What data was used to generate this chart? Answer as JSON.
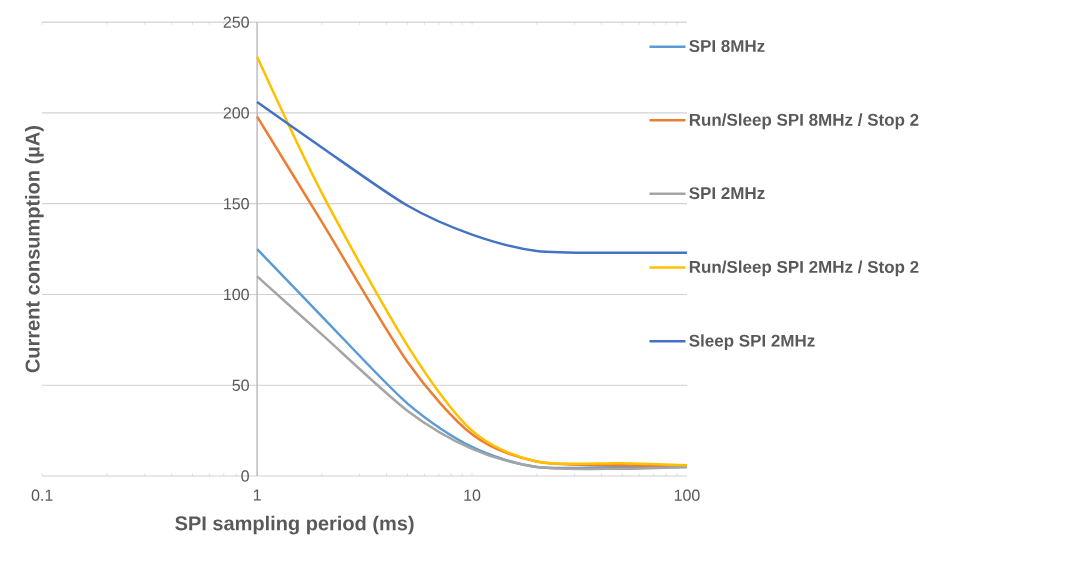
{
  "chart_data": {
    "type": "line",
    "xlabel": "SPI sampling period (ms)",
    "ylabel": "Current consumption (µA)",
    "log": "x",
    "xlim": [
      0.1,
      100
    ],
    "xticks": [
      0.1,
      1,
      10,
      100
    ],
    "ylim": [
      0,
      250
    ],
    "yticks": [
      0,
      50,
      100,
      150,
      200,
      250
    ],
    "grid": "y",
    "legend": "right",
    "marker": "none",
    "line_style": "solid",
    "series": [
      {
        "name": "SPI 8MHz",
        "color": "#5b9bd5",
        "x": [
          1,
          2,
          5,
          10,
          20,
          50,
          100
        ],
        "values": [
          125,
          88,
          40,
          16,
          5,
          5,
          5
        ]
      },
      {
        "name": "Run/Sleep SPI 8MHz / Stop 2",
        "color": "#ed7d31",
        "x": [
          1,
          2,
          5,
          10,
          20,
          50,
          100
        ],
        "values": [
          198,
          140,
          63,
          23,
          8,
          6,
          6
        ]
      },
      {
        "name": "SPI 2MHz",
        "color": "#a5a5a5",
        "x": [
          1,
          2,
          5,
          10,
          20,
          50,
          100
        ],
        "values": [
          110,
          78,
          36,
          15,
          5,
          4,
          5
        ]
      },
      {
        "name": "Run/Sleep SPI 2MHz / Stop 2",
        "color": "#ffc000",
        "x": [
          1,
          2,
          5,
          10,
          20,
          50,
          100
        ],
        "values": [
          231,
          156,
          72,
          25,
          8,
          7,
          6
        ]
      },
      {
        "name": "Sleep SPI 2MHz",
        "color": "#4472c4",
        "x": [
          1,
          2,
          5,
          10,
          20,
          50,
          100
        ],
        "values": [
          206,
          181,
          149,
          133,
          124,
          123,
          123
        ]
      }
    ]
  }
}
